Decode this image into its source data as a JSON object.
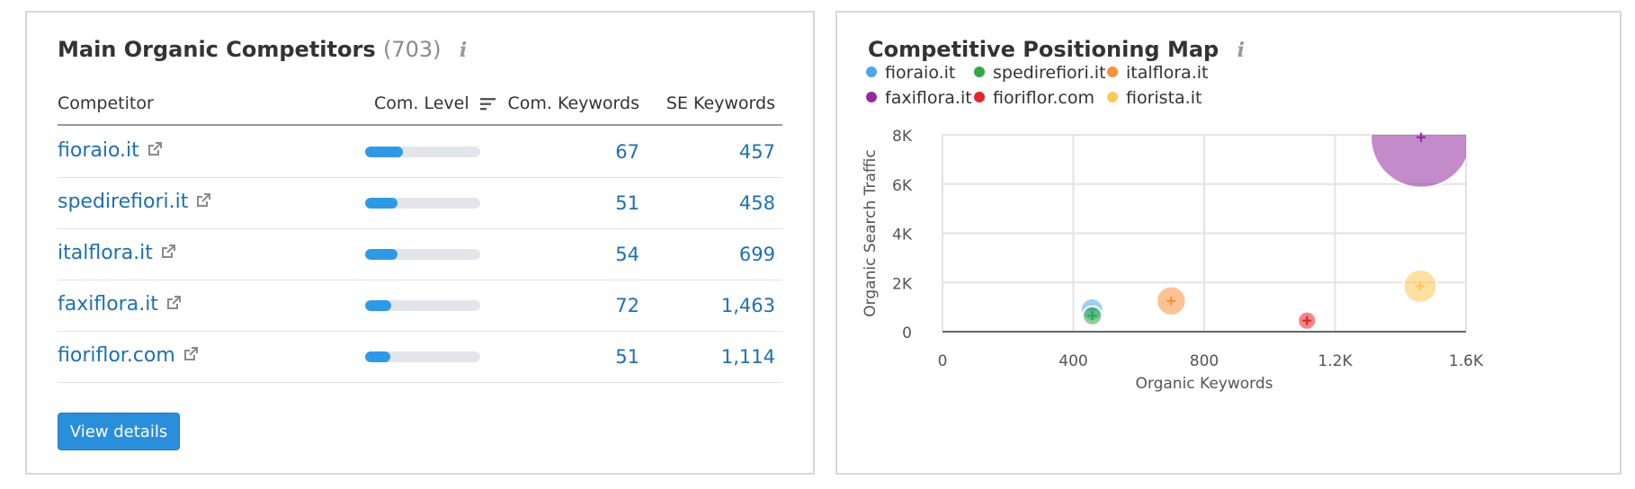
{
  "left_panel": {
    "title": "Main Organic Competitors",
    "count": "(703)",
    "info_icon": "i",
    "columns": {
      "competitor": "Competitor",
      "com_level": "Com. Level",
      "com_keywords": "Com. Keywords",
      "se_keywords": "SE Keywords"
    },
    "rows": [
      {
        "name": "fioraio.it",
        "com_level": 0.33,
        "com_keywords": "67",
        "se_keywords": "457"
      },
      {
        "name": "spedirefiori.it",
        "com_level": 0.28,
        "com_keywords": "51",
        "se_keywords": "458"
      },
      {
        "name": "italflora.it",
        "com_level": 0.28,
        "com_keywords": "54",
        "se_keywords": "699"
      },
      {
        "name": "faxiflora.it",
        "com_level": 0.23,
        "com_keywords": "72",
        "se_keywords": "1,463"
      },
      {
        "name": "fioriflor.com",
        "com_level": 0.22,
        "com_keywords": "51",
        "se_keywords": "1,114"
      }
    ],
    "view_details": "View details"
  },
  "right_panel": {
    "title": "Competitive Positioning Map",
    "info_icon": "i"
  },
  "chart_data": {
    "type": "scatter",
    "title": "Competitive Positioning Map",
    "xlabel": "Organic Keywords",
    "ylabel": "Organic Search Traffic",
    "xlim": [
      0,
      1600
    ],
    "ylim": [
      0,
      8000
    ],
    "x_ticks": [
      0,
      400,
      800,
      1200,
      1600
    ],
    "x_tick_labels": [
      "0",
      "400",
      "800",
      "1.2K",
      "1.6K"
    ],
    "y_ticks": [
      0,
      2000,
      4000,
      6000,
      8000
    ],
    "y_tick_labels": [
      "0",
      "2K",
      "4K",
      "6K",
      "8K"
    ],
    "grid": true,
    "legend_position": "top",
    "series": [
      {
        "name": "fioraio.it",
        "color": "#4aa8ec",
        "x": 457,
        "y": 900,
        "size": 0.22
      },
      {
        "name": "spedirefiori.it",
        "color": "#34a846",
        "x": 458,
        "y": 650,
        "size": 0.19
      },
      {
        "name": "italflora.it",
        "color": "#f7923a",
        "x": 699,
        "y": 1250,
        "size": 0.29
      },
      {
        "name": "faxiflora.it",
        "color": "#932b9e",
        "x": 1463,
        "y": 7900,
        "size": 1.0
      },
      {
        "name": "fioriflor.com",
        "color": "#e5242c",
        "x": 1114,
        "y": 450,
        "size": 0.18
      },
      {
        "name": "fiorista.it",
        "color": "#fdc754",
        "x": 1460,
        "y": 1850,
        "size": 0.33
      }
    ]
  }
}
